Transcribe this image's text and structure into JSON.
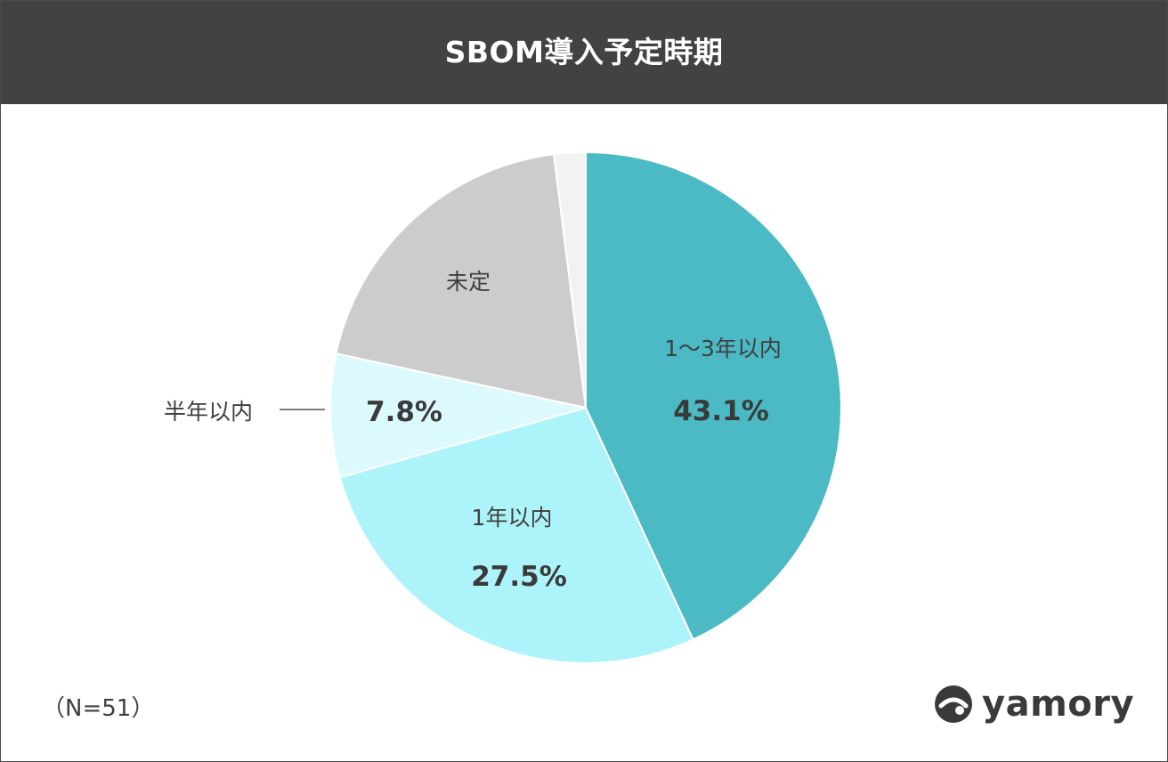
{
  "title": "SBOM導入予定時期",
  "note": "（N=51）",
  "brand": {
    "name": "yamory",
    "icon": "yamory-logo-icon",
    "color": "#3a3a3a"
  },
  "chart_data": {
    "type": "pie",
    "title": "SBOM導入予定時期",
    "slices": [
      {
        "label": "1～3年以内",
        "value_label": "43.1%",
        "value": 43.1,
        "color": "#4bbac4"
      },
      {
        "label": "1年以内",
        "value_label": "27.5%",
        "value": 27.5,
        "color": "#adf4fa"
      },
      {
        "label": "半年以内",
        "value_label": "7.8%",
        "value": 7.8,
        "color": "#dcfafd"
      },
      {
        "label": "未定",
        "value_label": "",
        "value": 19.6,
        "color": "#cccccc"
      },
      {
        "label": "",
        "value_label": "",
        "value": 2.0,
        "color": "#f2f2f2"
      }
    ],
    "start": "12 o'clock",
    "direction": "clockwise",
    "legend": "none"
  }
}
